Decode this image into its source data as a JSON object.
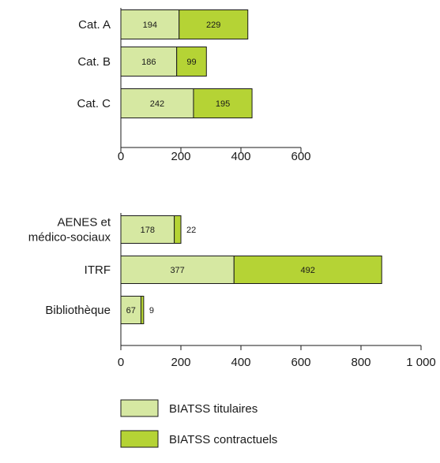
{
  "colors": {
    "titulaires": "#d6e8a2",
    "contractuels": "#b5d335",
    "stroke": "#1a1a1a"
  },
  "chart_data": [
    {
      "type": "bar",
      "orientation": "horizontal",
      "stacked": true,
      "categories": [
        "Cat. A",
        "Cat. B",
        "Cat. C"
      ],
      "series": [
        {
          "name": "BIATSS titulaires",
          "values": [
            194,
            186,
            242
          ]
        },
        {
          "name": "BIATSS contractuels",
          "values": [
            229,
            99,
            195
          ]
        }
      ],
      "xticks": [
        "0",
        "200",
        "400",
        "600"
      ],
      "xlim": [
        0,
        600
      ],
      "grid": false
    },
    {
      "type": "bar",
      "orientation": "horizontal",
      "stacked": true,
      "categories": [
        [
          "AENES et",
          "médico-sociaux"
        ],
        [
          "ITRF"
        ],
        [
          "Bibliothèque"
        ]
      ],
      "series": [
        {
          "name": "BIATSS titulaires",
          "values": [
            178,
            377,
            67
          ]
        },
        {
          "name": "BIATSS contractuels",
          "values": [
            22,
            492,
            9
          ]
        }
      ],
      "xticks": [
        "0",
        "200",
        "400",
        "600",
        "800",
        "1 000"
      ],
      "xlim": [
        0,
        1000
      ],
      "grid": false
    }
  ],
  "legend": {
    "position": "bottom",
    "items": [
      {
        "label": "BIATSS titulaires",
        "series": 0
      },
      {
        "label": "BIATSS contractuels",
        "series": 1
      }
    ]
  }
}
